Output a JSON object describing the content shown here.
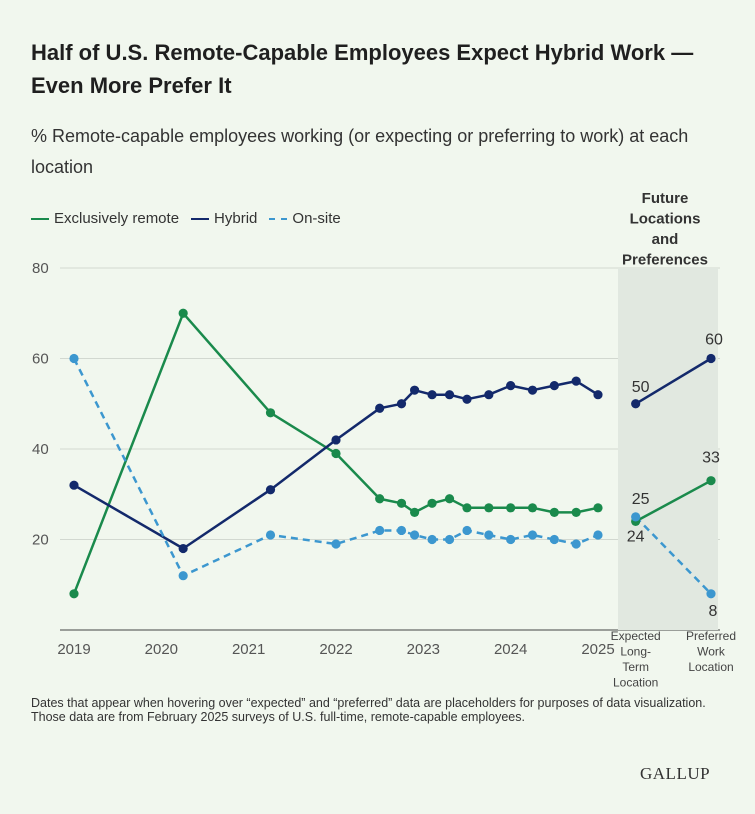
{
  "title": "Half of U.S. Remote-Capable Employees Expect Hybrid Work — Even More Prefer It",
  "subtitle": "% Remote-capable employees working (or expecting or preferring to work) at each location",
  "note": "Dates that appear when hovering over “expected” and “preferred” data are placeholders for purposes of data visualization. Those data are from February 2025 surveys of U.S. full-time, remote-capable employees.",
  "brand": "GALLUP",
  "chart_data": {
    "type": "line",
    "title": "Half of U.S. Remote-Capable Employees Expect Hybrid Work — Even More Prefer It",
    "ylabel": "% Remote-capable employees",
    "ylim": [
      0,
      80
    ],
    "yticks": [
      20,
      40,
      60,
      80
    ],
    "xlim": [
      2019,
      2026.6
    ],
    "xticks": [
      2019,
      2020,
      2021,
      2022,
      2023,
      2024,
      2025
    ],
    "future_region": {
      "label_lines": [
        "Future",
        "Locations",
        "and",
        "Preferences"
      ],
      "categories": [
        {
          "x": 2025.5,
          "label_lines": [
            "Expected",
            "Long-",
            "Term",
            "Location"
          ]
        },
        {
          "x": 2026.5,
          "label_lines": [
            "Preferred",
            "Work",
            "Location"
          ]
        }
      ]
    },
    "series": [
      {
        "name": "Exclusively remote",
        "color": "#1a8a4c",
        "dashed": false,
        "points": [
          [
            2019.0,
            8
          ],
          [
            2020.25,
            70
          ],
          [
            2021.25,
            48
          ],
          [
            2022.0,
            39
          ],
          [
            2022.5,
            29
          ],
          [
            2022.75,
            28
          ],
          [
            2022.9,
            26
          ],
          [
            2023.1,
            28
          ],
          [
            2023.3,
            29
          ],
          [
            2023.5,
            27
          ],
          [
            2023.75,
            27
          ],
          [
            2024.0,
            27
          ],
          [
            2024.25,
            27
          ],
          [
            2024.5,
            26
          ],
          [
            2024.75,
            26
          ],
          [
            2025.0,
            27
          ]
        ],
        "future": [
          [
            2025.5,
            24
          ],
          [
            2026.5,
            33
          ]
        ],
        "future_labels": [
          "24",
          "33"
        ]
      },
      {
        "name": "Hybrid",
        "color": "#13296b",
        "dashed": false,
        "points": [
          [
            2019.0,
            32
          ],
          [
            2020.25,
            18
          ],
          [
            2021.25,
            31
          ],
          [
            2022.0,
            42
          ],
          [
            2022.5,
            49
          ],
          [
            2022.75,
            50
          ],
          [
            2022.9,
            53
          ],
          [
            2023.1,
            52
          ],
          [
            2023.3,
            52
          ],
          [
            2023.5,
            51
          ],
          [
            2023.75,
            52
          ],
          [
            2024.0,
            54
          ],
          [
            2024.25,
            53
          ],
          [
            2024.5,
            54
          ],
          [
            2024.75,
            55
          ],
          [
            2025.0,
            52
          ]
        ],
        "future": [
          [
            2025.5,
            50
          ],
          [
            2026.5,
            60
          ]
        ],
        "future_labels": [
          "50",
          "60"
        ]
      },
      {
        "name": "On-site",
        "color": "#3c97cf",
        "dashed": true,
        "points": [
          [
            2019.0,
            60
          ],
          [
            2020.25,
            12
          ],
          [
            2021.25,
            21
          ],
          [
            2022.0,
            19
          ],
          [
            2022.5,
            22
          ],
          [
            2022.75,
            22
          ],
          [
            2022.9,
            21
          ],
          [
            2023.1,
            20
          ],
          [
            2023.3,
            20
          ],
          [
            2023.5,
            22
          ],
          [
            2023.75,
            21
          ],
          [
            2024.0,
            20
          ],
          [
            2024.25,
            21
          ],
          [
            2024.5,
            20
          ],
          [
            2024.75,
            19
          ],
          [
            2025.0,
            21
          ]
        ],
        "future": [
          [
            2025.5,
            25
          ],
          [
            2026.5,
            8
          ]
        ],
        "future_labels": [
          "25",
          "8"
        ]
      }
    ]
  }
}
